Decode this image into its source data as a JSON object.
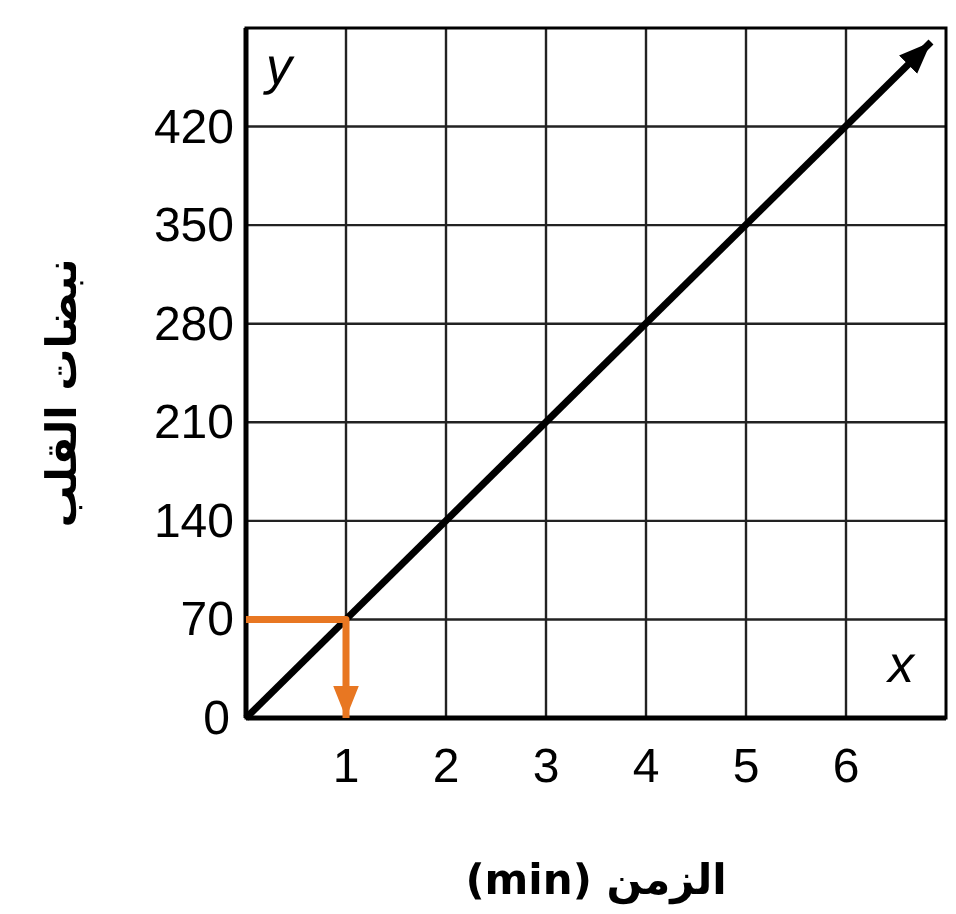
{
  "chart_data": {
    "type": "line",
    "xlabel": "الزمن (min)",
    "ylabel": "نبضات القلب",
    "annotations": [
      "x",
      "y"
    ],
    "xlim": [
      0,
      7
    ],
    "ylim": [
      0,
      490
    ],
    "xticks": [
      1,
      2,
      3,
      4,
      5,
      6
    ],
    "yticks": [
      0,
      70,
      140,
      210,
      280,
      350,
      420
    ],
    "grid": true,
    "series": [
      {
        "x": [
          0,
          6.85
        ],
        "values": [
          0,
          480
        ],
        "color": "#000000"
      },
      {
        "x": [
          0,
          1,
          1
        ],
        "values": [
          70,
          70,
          0
        ],
        "color": "#e87722"
      }
    ]
  }
}
